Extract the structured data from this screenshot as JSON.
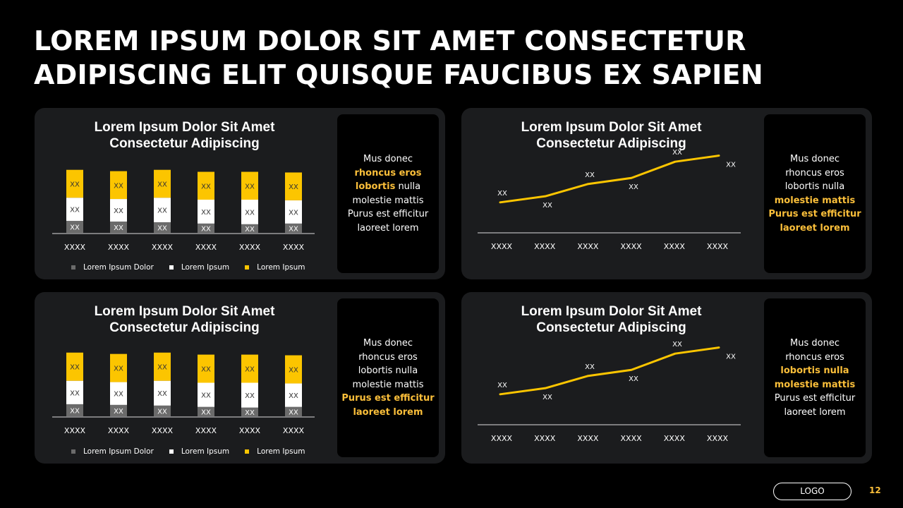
{
  "slide": {
    "title_lines": [
      "LOREM IPSUM DOLOR SIT AMET CONSECTETUR",
      "ADIPISCING ELIT QUISQUE FAUCIBUS EX SAPIEN"
    ],
    "logo": "LOGO",
    "page_number": "12"
  },
  "colors": {
    "accent": "#fbbf3a",
    "bar_yellow": "#fcc500",
    "bar_white": "#ffffff",
    "bar_gray": "#6b6b6b",
    "panel_bg": "#1b1c1e"
  },
  "panels": [
    {
      "title_lines": [
        "Lorem Ipsum Dolor Sit Amet",
        "Consectetur Adipiscing"
      ],
      "side_text": [
        {
          "text": "Mus donec",
          "hl": false
        },
        {
          "text": "rhoncus eros",
          "hl": true
        },
        {
          "segments": [
            {
              "text": "lobortis",
              "hl": true
            },
            {
              "text": " nulla",
              "hl": false
            }
          ]
        },
        {
          "text": "molestie mattis",
          "hl": false
        },
        {
          "text": "Purus est efficitur",
          "hl": false
        },
        {
          "text": "laoreet lorem",
          "hl": false
        }
      ],
      "legend": [
        "Lorem Ipsum Dolor",
        "Lorem Ipsum",
        "Lorem Ipsum"
      ]
    },
    {
      "title_lines": [
        "Lorem Ipsum Dolor Sit Amet",
        "Consectetur Adipiscing"
      ],
      "side_text": [
        {
          "text": "Mus donec",
          "hl": false
        },
        {
          "text": "rhoncus eros",
          "hl": false
        },
        {
          "text": "lobortis nulla",
          "hl": false
        },
        {
          "text": "molestie mattis",
          "hl": true
        },
        {
          "text": "Purus est efficitur",
          "hl": true
        },
        {
          "text": "laoreet lorem",
          "hl": true
        }
      ]
    },
    {
      "title_lines": [
        "Lorem Ipsum Dolor Sit Amet",
        "Consectetur Adipiscing"
      ],
      "side_text": [
        {
          "text": "Mus donec",
          "hl": false
        },
        {
          "text": "rhoncus eros",
          "hl": false
        },
        {
          "text": "lobortis nulla",
          "hl": false
        },
        {
          "text": "molestie mattis",
          "hl": false
        },
        {
          "text": "Purus est efficitur",
          "hl": true
        },
        {
          "text": "laoreet lorem",
          "hl": true
        }
      ],
      "legend": [
        "Lorem Ipsum Dolor",
        "Lorem Ipsum",
        "Lorem Ipsum"
      ]
    },
    {
      "title_lines": [
        "Lorem Ipsum Dolor Sit Amet",
        "Consectetur Adipiscing"
      ],
      "side_text": [
        {
          "text": "Mus donec",
          "hl": false
        },
        {
          "text": "rhoncus eros",
          "hl": false
        },
        {
          "text": "lobortis nulla",
          "hl": true
        },
        {
          "text": "molestie mattis",
          "hl": true
        },
        {
          "text": "Purus est efficitur",
          "hl": false
        },
        {
          "text": "laoreet lorem",
          "hl": false
        }
      ]
    }
  ],
  "chart_data": [
    {
      "type": "bar",
      "stacked": true,
      "title": "Lorem Ipsum Dolor Sit Amet Consectetur Adipiscing",
      "categories": [
        "XXXX",
        "XXXX",
        "XXXX",
        "XXXX",
        "XXXX",
        "XXXX"
      ],
      "series": [
        {
          "name": "Lorem Ipsum Dolor",
          "color": "#6b6b6b",
          "values": [
            18,
            17,
            16,
            14,
            13,
            14
          ],
          "labels": [
            "XX",
            "XX",
            "XX",
            "XX",
            "XX",
            "XX"
          ]
        },
        {
          "name": "Lorem Ipsum",
          "color": "#ffffff",
          "values": [
            35,
            34,
            37,
            36,
            37,
            35
          ],
          "labels": [
            "XX",
            "XX",
            "XX",
            "XX",
            "XX",
            "XX"
          ]
        },
        {
          "name": "Lorem Ipsum",
          "color": "#fcc500",
          "values": [
            42,
            42,
            42,
            42,
            42,
            42
          ],
          "labels": [
            "XX",
            "XX",
            "XX",
            "XX",
            "XX",
            "XX"
          ]
        }
      ],
      "ylim": [
        0,
        100
      ],
      "legend": "bottom",
      "grid": false
    },
    {
      "type": "line",
      "title": "Lorem Ipsum Dolor Sit Amet Consectetur Adipiscing",
      "categories": [
        "XXXX",
        "XXXX",
        "XXXX",
        "XXXX",
        "XXXX",
        "XXXX"
      ],
      "series": [
        {
          "color": "#fcc500",
          "values": [
            30,
            36,
            48,
            54,
            70,
            76
          ],
          "labels": [
            "XX",
            "XX",
            "XX",
            "XX",
            "XX",
            "XX"
          ]
        }
      ],
      "ylim": [
        0,
        100
      ],
      "grid": false
    },
    {
      "type": "bar",
      "stacked": true,
      "title": "Lorem Ipsum Dolor Sit Amet Consectetur Adipiscing",
      "categories": [
        "XXXX",
        "XXXX",
        "XXXX",
        "XXXX",
        "XXXX",
        "XXXX"
      ],
      "series": [
        {
          "name": "Lorem Ipsum Dolor",
          "color": "#6b6b6b",
          "values": [
            18,
            17,
            16,
            14,
            13,
            14
          ],
          "labels": [
            "XX",
            "XX",
            "XX",
            "XX",
            "XX",
            "XX"
          ]
        },
        {
          "name": "Lorem Ipsum",
          "color": "#ffffff",
          "values": [
            35,
            34,
            37,
            36,
            37,
            35
          ],
          "labels": [
            "XX",
            "XX",
            "XX",
            "XX",
            "XX",
            "XX"
          ]
        },
        {
          "name": "Lorem Ipsum",
          "color": "#fcc500",
          "values": [
            42,
            42,
            42,
            42,
            42,
            42
          ],
          "labels": [
            "XX",
            "XX",
            "XX",
            "XX",
            "XX",
            "XX"
          ]
        }
      ],
      "ylim": [
        0,
        100
      ],
      "legend": "bottom",
      "grid": false
    },
    {
      "type": "line",
      "title": "Lorem Ipsum Dolor Sit Amet Consectetur Adipiscing",
      "categories": [
        "XXXX",
        "XXXX",
        "XXXX",
        "XXXX",
        "XXXX",
        "XXXX"
      ],
      "series": [
        {
          "color": "#fcc500",
          "values": [
            30,
            36,
            48,
            54,
            70,
            76
          ],
          "labels": [
            "XX",
            "XX",
            "XX",
            "XX",
            "XX",
            "XX"
          ]
        }
      ],
      "ylim": [
        0,
        100
      ],
      "grid": false
    }
  ]
}
